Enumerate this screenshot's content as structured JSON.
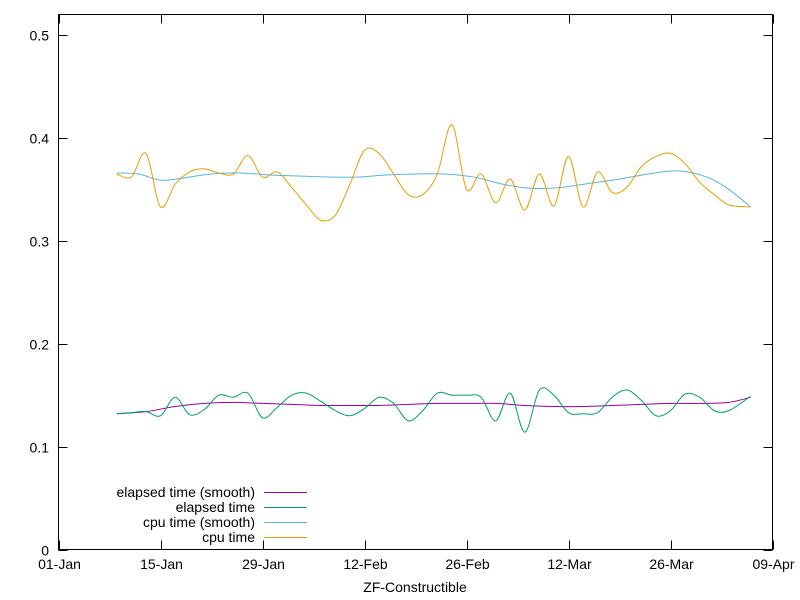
{
  "chart_data": {
    "type": "line",
    "xlabel": "ZF-Constructible",
    "ylim": [
      0,
      0.52
    ],
    "yticks": [
      0,
      0.1,
      0.2,
      0.3,
      0.4,
      0.5
    ],
    "ytick_labels": [
      "0",
      "0.1",
      "0.2",
      "0.3",
      "0.4",
      "0.5"
    ],
    "xlim": [
      "2019-01-01",
      "2019-04-09"
    ],
    "xticks": [
      "2019-01-01",
      "2019-01-15",
      "2019-01-29",
      "2019-02-12",
      "2019-02-26",
      "2019-03-12",
      "2019-03-26",
      "2019-04-09"
    ],
    "xtick_labels": [
      "01-Jan",
      "15-Jan",
      "29-Jan",
      "12-Feb",
      "26-Feb",
      "12-Mar",
      "26-Mar",
      "09-Apr"
    ],
    "legend_position": "bottom-left",
    "grid": false,
    "series": [
      {
        "name": "elapsed time (smooth)",
        "color": "#990099",
        "x": [
          "2019-01-09",
          "2019-01-13",
          "2019-01-17",
          "2019-01-21",
          "2019-01-25",
          "2019-01-29",
          "2019-02-02",
          "2019-02-06",
          "2019-02-10",
          "2019-02-14",
          "2019-02-18",
          "2019-02-22",
          "2019-02-26",
          "2019-03-02",
          "2019-03-06",
          "2019-03-10",
          "2019-03-14",
          "2019-03-18",
          "2019-03-22",
          "2019-03-26",
          "2019-03-30",
          "2019-04-03",
          "2019-04-06"
        ],
        "y": [
          0.132,
          0.134,
          0.139,
          0.142,
          0.143,
          0.142,
          0.141,
          0.14,
          0.14,
          0.14,
          0.141,
          0.142,
          0.142,
          0.142,
          0.14,
          0.139,
          0.139,
          0.14,
          0.141,
          0.142,
          0.142,
          0.143,
          0.148
        ]
      },
      {
        "name": "elapsed time",
        "color": "#009e73",
        "x": [
          "2019-01-09",
          "2019-01-11",
          "2019-01-13",
          "2019-01-15",
          "2019-01-17",
          "2019-01-19",
          "2019-01-21",
          "2019-01-23",
          "2019-01-25",
          "2019-01-27",
          "2019-01-29",
          "2019-01-31",
          "2019-02-02",
          "2019-02-04",
          "2019-02-06",
          "2019-02-08",
          "2019-02-10",
          "2019-02-12",
          "2019-02-14",
          "2019-02-16",
          "2019-02-18",
          "2019-02-20",
          "2019-02-22",
          "2019-02-24",
          "2019-02-26",
          "2019-02-28",
          "2019-03-02",
          "2019-03-04",
          "2019-03-06",
          "2019-03-08",
          "2019-03-10",
          "2019-03-12",
          "2019-03-14",
          "2019-03-16",
          "2019-03-18",
          "2019-03-20",
          "2019-03-22",
          "2019-03-24",
          "2019-03-26",
          "2019-03-28",
          "2019-03-30",
          "2019-04-01",
          "2019-04-03",
          "2019-04-06"
        ],
        "y": [
          0.132,
          0.133,
          0.134,
          0.13,
          0.148,
          0.131,
          0.136,
          0.15,
          0.148,
          0.152,
          0.128,
          0.138,
          0.15,
          0.152,
          0.144,
          0.135,
          0.13,
          0.137,
          0.148,
          0.142,
          0.125,
          0.135,
          0.152,
          0.15,
          0.15,
          0.148,
          0.125,
          0.152,
          0.114,
          0.155,
          0.15,
          0.133,
          0.132,
          0.133,
          0.148,
          0.155,
          0.145,
          0.13,
          0.135,
          0.151,
          0.148,
          0.135,
          0.135,
          0.149
        ]
      },
      {
        "name": "cpu time (smooth)",
        "color": "#56b4e9",
        "x": [
          "2019-01-09",
          "2019-01-12",
          "2019-01-15",
          "2019-01-18",
          "2019-01-22",
          "2019-01-26",
          "2019-01-30",
          "2019-02-03",
          "2019-02-07",
          "2019-02-11",
          "2019-02-15",
          "2019-02-19",
          "2019-02-23",
          "2019-02-27",
          "2019-03-03",
          "2019-03-07",
          "2019-03-11",
          "2019-03-15",
          "2019-03-19",
          "2019-03-23",
          "2019-03-27",
          "2019-03-31",
          "2019-04-03",
          "2019-04-06"
        ],
        "y": [
          0.366,
          0.365,
          0.359,
          0.361,
          0.365,
          0.366,
          0.364,
          0.363,
          0.362,
          0.362,
          0.364,
          0.365,
          0.365,
          0.362,
          0.355,
          0.351,
          0.352,
          0.356,
          0.36,
          0.365,
          0.368,
          0.362,
          0.35,
          0.333
        ]
      },
      {
        "name": "cpu time",
        "color": "#e69f00",
        "x": [
          "2019-01-09",
          "2019-01-11",
          "2019-01-13",
          "2019-01-15",
          "2019-01-17",
          "2019-01-19",
          "2019-01-21",
          "2019-01-23",
          "2019-01-25",
          "2019-01-27",
          "2019-01-29",
          "2019-01-31",
          "2019-02-02",
          "2019-02-04",
          "2019-02-06",
          "2019-02-08",
          "2019-02-10",
          "2019-02-12",
          "2019-02-14",
          "2019-02-16",
          "2019-02-18",
          "2019-02-20",
          "2019-02-22",
          "2019-02-24",
          "2019-02-26",
          "2019-02-28",
          "2019-03-02",
          "2019-03-04",
          "2019-03-06",
          "2019-03-08",
          "2019-03-10",
          "2019-03-12",
          "2019-03-14",
          "2019-03-16",
          "2019-03-18",
          "2019-03-20",
          "2019-03-22",
          "2019-03-24",
          "2019-03-26",
          "2019-03-28",
          "2019-03-30",
          "2019-04-01",
          "2019-04-03",
          "2019-04-06"
        ],
        "y": [
          0.365,
          0.362,
          0.385,
          0.333,
          0.355,
          0.367,
          0.37,
          0.366,
          0.365,
          0.383,
          0.362,
          0.367,
          0.352,
          0.335,
          0.32,
          0.325,
          0.355,
          0.388,
          0.385,
          0.365,
          0.345,
          0.345,
          0.365,
          0.413,
          0.35,
          0.365,
          0.337,
          0.36,
          0.33,
          0.365,
          0.334,
          0.382,
          0.333,
          0.367,
          0.347,
          0.352,
          0.372,
          0.382,
          0.385,
          0.375,
          0.357,
          0.345,
          0.335,
          0.333
        ]
      }
    ]
  }
}
